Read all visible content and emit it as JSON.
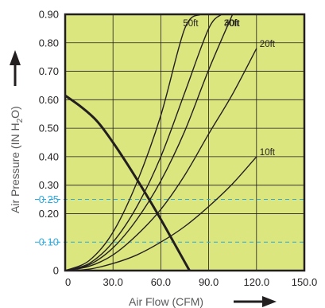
{
  "chart_data": {
    "type": "line",
    "xlabel": "Air Flow (CFM)",
    "ylabel_main": "Air Pressure (IN H",
    "ylabel_sub": "2",
    "ylabel_end": "O)",
    "xlim": [
      0,
      150
    ],
    "ylim": [
      0,
      0.9
    ],
    "x_ticks": [
      {
        "value": 0,
        "label": "0"
      },
      {
        "value": 30,
        "label": "30.0"
      },
      {
        "value": 60,
        "label": "60.0"
      },
      {
        "value": 90,
        "label": "90.0"
      },
      {
        "value": 120,
        "label": "120.0"
      },
      {
        "value": 150,
        "label": "150.0"
      }
    ],
    "y_ticks": [
      {
        "value": 0,
        "label": "0"
      },
      {
        "value": 0.1,
        "label": "0.10",
        "highlight": true
      },
      {
        "value": 0.2,
        "label": "0.20"
      },
      {
        "value": 0.25,
        "label": "0.25",
        "highlight": true
      },
      {
        "value": 0.3,
        "label": "0.30"
      },
      {
        "value": 0.4,
        "label": "0.40"
      },
      {
        "value": 0.5,
        "label": "0.50"
      },
      {
        "value": 0.6,
        "label": "0.60"
      },
      {
        "value": 0.7,
        "label": "0.70"
      },
      {
        "value": 0.8,
        "label": "0.80"
      },
      {
        "value": 0.9,
        "label": "0.90"
      }
    ],
    "grid": true,
    "reference_lines": [
      0.1,
      0.25
    ],
    "series": [
      {
        "name": "50ft",
        "label": "50ft",
        "x": [
          0,
          15,
          30,
          45,
          60,
          75,
          85
        ],
        "y": [
          0,
          0.035,
          0.135,
          0.31,
          0.545,
          0.85,
          0.9
        ]
      },
      {
        "name": "40ft",
        "label": "40ft",
        "x": [
          0,
          15,
          30,
          45,
          60,
          75,
          90,
          98
        ],
        "y": [
          0,
          0.025,
          0.1,
          0.225,
          0.4,
          0.625,
          0.85,
          0.9
        ]
      },
      {
        "name": "30ft",
        "label": "30ft",
        "x": [
          0,
          15,
          30,
          45,
          60,
          75,
          90,
          105
        ],
        "y": [
          0,
          0.02,
          0.08,
          0.18,
          0.315,
          0.49,
          0.705,
          0.9
        ]
      },
      {
        "name": "20ft",
        "label": "20ft",
        "x": [
          0,
          15,
          30,
          45,
          60,
          75,
          90,
          105,
          120
        ],
        "y": [
          0,
          0.015,
          0.055,
          0.125,
          0.215,
          0.335,
          0.48,
          0.62,
          0.78
        ]
      },
      {
        "name": "10ft",
        "label": "10ft",
        "x": [
          0,
          15,
          30,
          45,
          60,
          75,
          90,
          105,
          120
        ],
        "y": [
          0,
          0.005,
          0.025,
          0.055,
          0.1,
          0.155,
          0.225,
          0.305,
          0.4
        ]
      }
    ],
    "fan_curve": {
      "x": [
        0,
        10,
        20,
        30,
        40,
        50,
        60,
        70,
        78
      ],
      "y": [
        0.615,
        0.575,
        0.525,
        0.45,
        0.365,
        0.275,
        0.18,
        0.08,
        0
      ]
    },
    "colors": {
      "plot_background": "#dbe67f",
      "grid": "#231f20",
      "curves": "#231f20",
      "reference_line": "#29abe2",
      "reference_label": "#29abe2",
      "axis_title": "#58595b"
    }
  }
}
